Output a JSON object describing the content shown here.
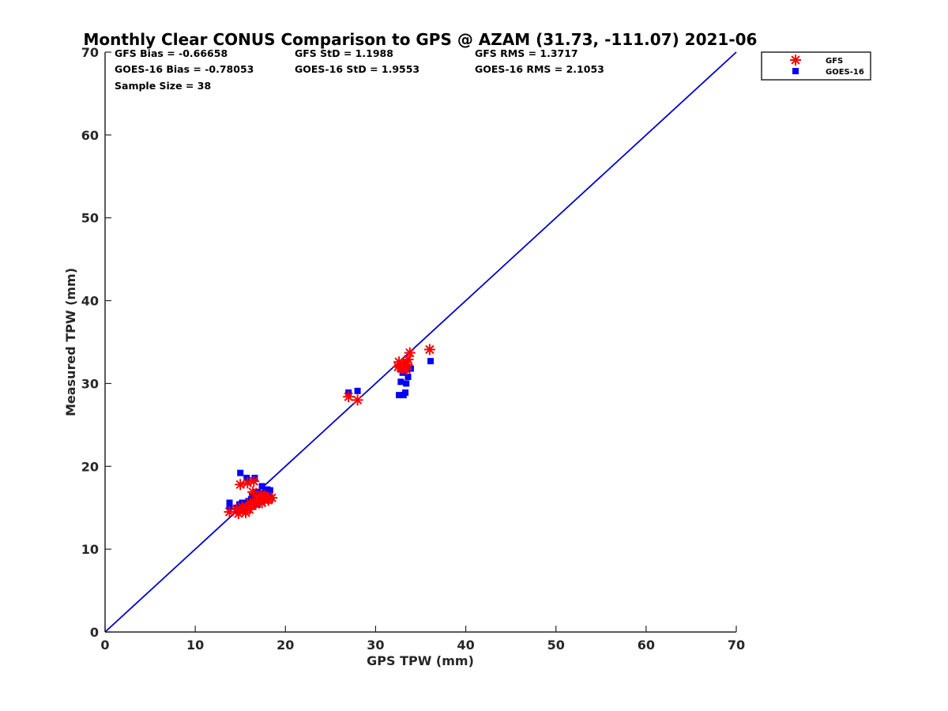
{
  "chart_data": {
    "type": "scatter",
    "title": "Monthly Clear CONUS Comparison to GPS @ AZAM (31.73, -111.07) 2021-06",
    "xlabel": "GPS TPW (mm)",
    "ylabel": "Measured TPW (mm)",
    "xlim": [
      0,
      70
    ],
    "ylim": [
      0,
      70
    ],
    "xticks": [
      "0",
      "10",
      "20",
      "30",
      "40",
      "50",
      "60",
      "70"
    ],
    "yticks": [
      "0",
      "10",
      "20",
      "30",
      "40",
      "50",
      "60",
      "70"
    ],
    "grid": false,
    "legend_position": "outside-top-right",
    "stats": {
      "gfs_bias": "GFS Bias = -0.66658",
      "gfs_std": "GFS StD = 1.1988",
      "gfs_rms": "GFS RMS = 1.3717",
      "goes_bias": "GOES-16 Bias = -0.78053",
      "goes_std": "GOES-16 StD = 1.9553",
      "goes_rms": "GOES-16 RMS = 2.1053",
      "sample_size": "Sample Size = 38"
    },
    "reference_line": {
      "x": [
        0,
        70
      ],
      "y": [
        0,
        70
      ],
      "color": "#0000cc"
    },
    "series": [
      {
        "name": "GFS",
        "marker": "asterisk",
        "color": "#ff0000",
        "points": [
          [
            13.8,
            14.5
          ],
          [
            14.8,
            14.3
          ],
          [
            15.0,
            17.8
          ],
          [
            15.3,
            14.7
          ],
          [
            15.6,
            14.4
          ],
          [
            15.8,
            18.0
          ],
          [
            16.0,
            14.8
          ],
          [
            16.2,
            15.3
          ],
          [
            16.5,
            18.2
          ],
          [
            16.7,
            15.4
          ],
          [
            17.0,
            15.9
          ],
          [
            17.3,
            16.6
          ],
          [
            17.6,
            16.0
          ],
          [
            17.9,
            16.3
          ],
          [
            18.2,
            16.1
          ],
          [
            18.5,
            16.2
          ],
          [
            15.7,
            15.0
          ],
          [
            16.9,
            16.1
          ],
          [
            17.4,
            15.6
          ],
          [
            27.0,
            28.4
          ],
          [
            28.0,
            28.0
          ],
          [
            32.5,
            32.0
          ],
          [
            32.6,
            32.6
          ],
          [
            32.9,
            31.8
          ],
          [
            33.0,
            32.4
          ],
          [
            33.2,
            32.2
          ],
          [
            33.4,
            31.7
          ],
          [
            33.6,
            32.9
          ],
          [
            33.8,
            33.7
          ],
          [
            33.5,
            32.3
          ],
          [
            32.8,
            31.9
          ],
          [
            36.0,
            34.1
          ],
          [
            16.1,
            15.6
          ],
          [
            17.7,
            16.4
          ],
          [
            14.6,
            14.8
          ],
          [
            16.4,
            16.9
          ],
          [
            18.1,
            15.9
          ],
          [
            15.2,
            15.1
          ]
        ]
      },
      {
        "name": "GOES-16",
        "marker": "square",
        "color": "#0000ff",
        "points": [
          [
            13.8,
            15.6
          ],
          [
            13.8,
            15.1
          ],
          [
            14.6,
            15.0
          ],
          [
            14.9,
            15.4
          ],
          [
            15.0,
            19.2
          ],
          [
            15.2,
            15.6
          ],
          [
            15.5,
            15.3
          ],
          [
            15.7,
            18.6
          ],
          [
            15.9,
            15.8
          ],
          [
            16.1,
            15.1
          ],
          [
            16.3,
            16.4
          ],
          [
            16.6,
            18.6
          ],
          [
            16.8,
            16.9
          ],
          [
            17.0,
            15.7
          ],
          [
            17.2,
            16.4
          ],
          [
            17.4,
            17.6
          ],
          [
            17.6,
            15.9
          ],
          [
            17.8,
            17.0
          ],
          [
            18.0,
            17.2
          ],
          [
            18.3,
            17.1
          ],
          [
            15.4,
            14.8
          ],
          [
            16.9,
            15.4
          ],
          [
            18.1,
            16.5
          ],
          [
            27.0,
            28.9
          ],
          [
            28.0,
            29.1
          ],
          [
            32.6,
            28.6
          ],
          [
            32.8,
            30.2
          ],
          [
            33.0,
            31.3
          ],
          [
            33.1,
            28.6
          ],
          [
            33.3,
            28.9
          ],
          [
            33.4,
            30.0
          ],
          [
            33.6,
            30.8
          ],
          [
            33.9,
            31.8
          ],
          [
            32.9,
            32.1
          ],
          [
            33.2,
            31.6
          ],
          [
            36.1,
            32.7
          ],
          [
            16.2,
            16.0
          ],
          [
            17.5,
            16.7
          ]
        ]
      }
    ]
  }
}
